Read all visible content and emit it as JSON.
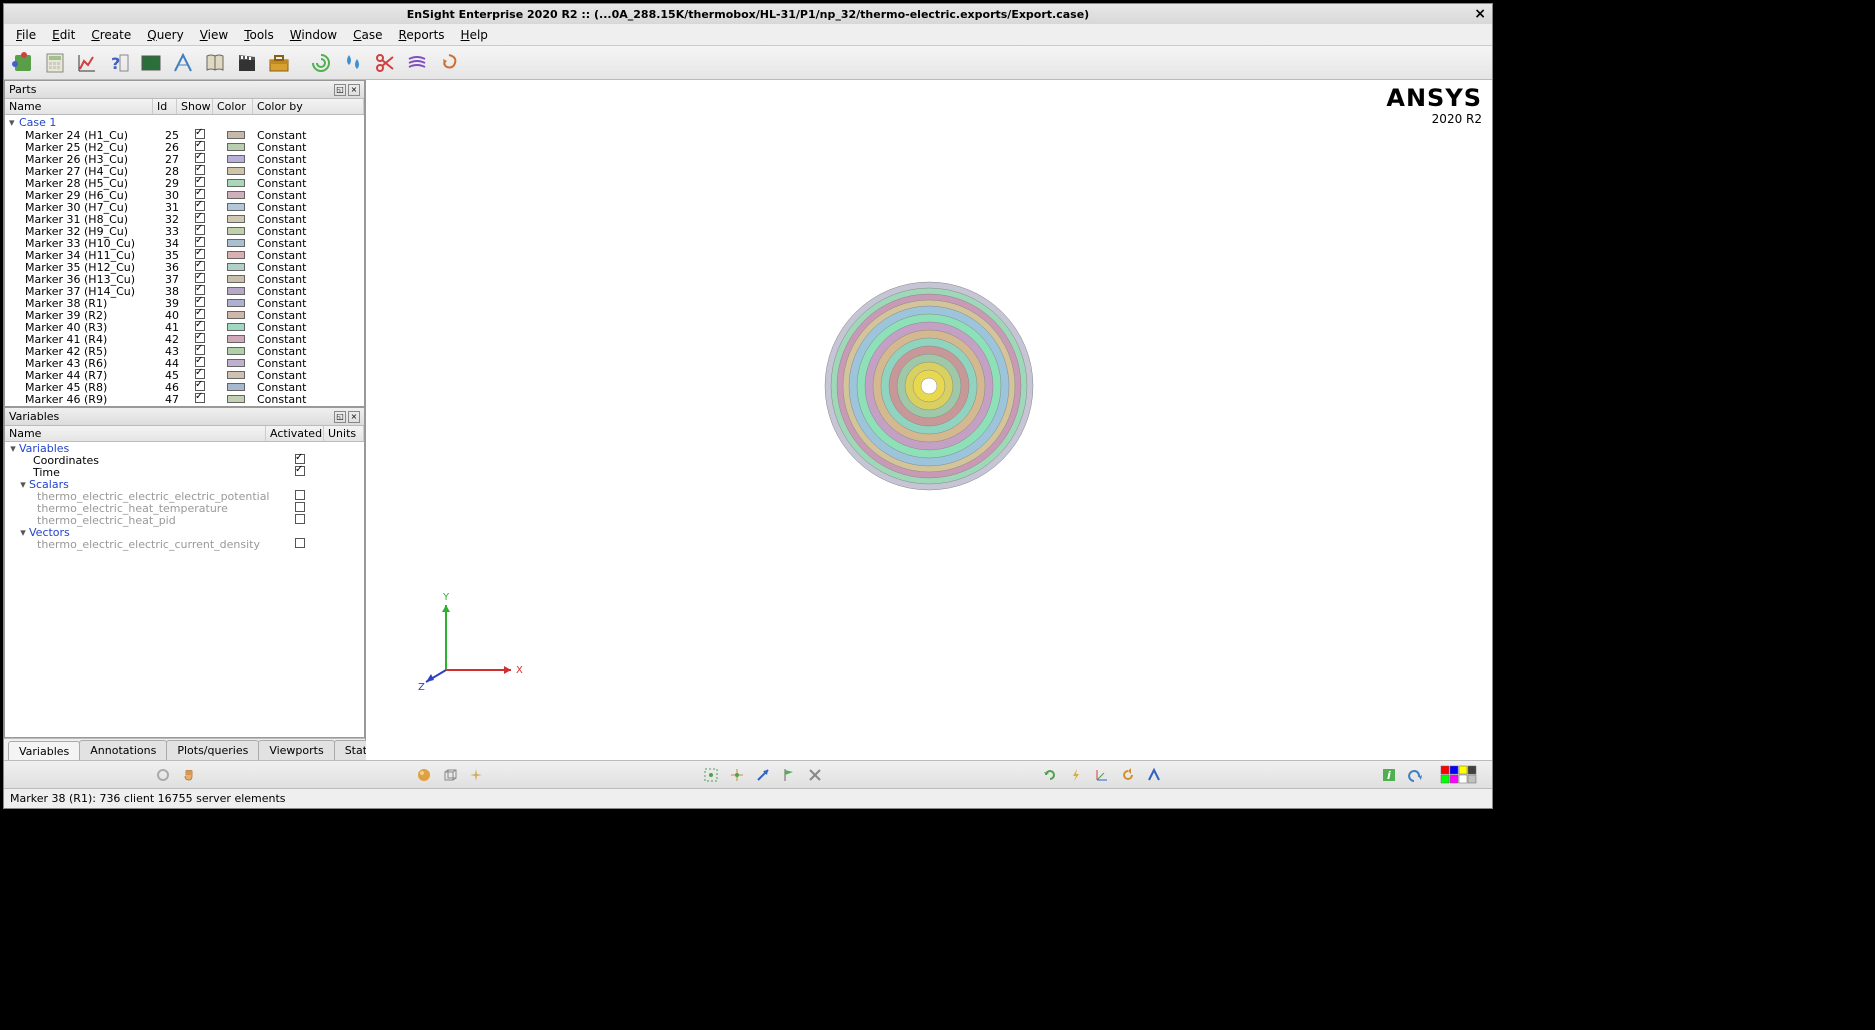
{
  "title": "EnSight Enterprise 2020 R2 :: (...0A_288.15K/thermobox/HL-31/P1/np_32/thermo-electric.exports/Export.case)",
  "menu": [
    "File",
    "Edit",
    "Create",
    "Query",
    "View",
    "Tools",
    "Window",
    "Case",
    "Reports",
    "Help"
  ],
  "brand": {
    "name": "ANSYS",
    "ver": "2020 R2"
  },
  "panels": {
    "parts": "Parts",
    "vars": "Variables"
  },
  "parts_cols": {
    "name": "Name",
    "id": "Id",
    "show": "Show",
    "color": "Color",
    "colorby": "Color by"
  },
  "vars_cols": {
    "name": "Name",
    "act": "Activated",
    "units": "Units"
  },
  "case_label": "Case 1",
  "parts": [
    {
      "name": "Marker 24 (H1_Cu)",
      "id": 25,
      "show": true,
      "color": "#c8b8a8",
      "colorby": "Constant"
    },
    {
      "name": "Marker 25 (H2_Cu)",
      "id": 26,
      "show": true,
      "color": "#b8d0b0",
      "colorby": "Constant"
    },
    {
      "name": "Marker 26 (H3_Cu)",
      "id": 27,
      "show": true,
      "color": "#b8b0d8",
      "colorby": "Constant"
    },
    {
      "name": "Marker 27 (H4_Cu)",
      "id": 28,
      "show": true,
      "color": "#d0c4a8",
      "colorby": "Constant"
    },
    {
      "name": "Marker 28 (H5_Cu)",
      "id": 29,
      "show": true,
      "color": "#a8d8b8",
      "colorby": "Constant"
    },
    {
      "name": "Marker 29 (H6_Cu)",
      "id": 30,
      "show": true,
      "color": "#d0b0b8",
      "colorby": "Constant"
    },
    {
      "name": "Marker 30 (H7_Cu)",
      "id": 31,
      "show": true,
      "color": "#b0c8d8",
      "colorby": "Constant"
    },
    {
      "name": "Marker 31 (H8_Cu)",
      "id": 32,
      "show": true,
      "color": "#d0c8b0",
      "colorby": "Constant"
    },
    {
      "name": "Marker 32 (H9_Cu)",
      "id": 33,
      "show": true,
      "color": "#c0d0a8",
      "colorby": "Constant"
    },
    {
      "name": "Marker 33 (H10_Cu)",
      "id": 34,
      "show": true,
      "color": "#a8c0d0",
      "colorby": "Constant"
    },
    {
      "name": "Marker 34 (H11_Cu)",
      "id": 35,
      "show": true,
      "color": "#d8b0b0",
      "colorby": "Constant"
    },
    {
      "name": "Marker 35 (H12_Cu)",
      "id": 36,
      "show": true,
      "color": "#b0d0c8",
      "colorby": "Constant"
    },
    {
      "name": "Marker 36 (H13_Cu)",
      "id": 37,
      "show": true,
      "color": "#c8c0a8",
      "colorby": "Constant"
    },
    {
      "name": "Marker 37 (H14_Cu)",
      "id": 38,
      "show": true,
      "color": "#b8a8c8",
      "colorby": "Constant"
    },
    {
      "name": "Marker 38 (R1)",
      "id": 39,
      "show": true,
      "color": "#b0b0d0",
      "colorby": "Constant"
    },
    {
      "name": "Marker 39 (R2)",
      "id": 40,
      "show": true,
      "color": "#d0b8a8",
      "colorby": "Constant"
    },
    {
      "name": "Marker 40 (R3)",
      "id": 41,
      "show": true,
      "color": "#a0d8c0",
      "colorby": "Constant"
    },
    {
      "name": "Marker 41 (R4)",
      "id": 42,
      "show": true,
      "color": "#d0a8b8",
      "colorby": "Constant"
    },
    {
      "name": "Marker 42 (R5)",
      "id": 43,
      "show": true,
      "color": "#b0d0a8",
      "colorby": "Constant"
    },
    {
      "name": "Marker 43 (R6)",
      "id": 44,
      "show": true,
      "color": "#c0b0d0",
      "colorby": "Constant"
    },
    {
      "name": "Marker 44 (R7)",
      "id": 45,
      "show": true,
      "color": "#d0c0b0",
      "colorby": "Constant"
    },
    {
      "name": "Marker 45 (R8)",
      "id": 46,
      "show": true,
      "color": "#a8b8d0",
      "colorby": "Constant"
    },
    {
      "name": "Marker 46 (R9)",
      "id": 47,
      "show": true,
      "color": "#c0d0b0",
      "colorby": "Constant"
    }
  ],
  "variables": {
    "root": "Variables",
    "leaves_a": [
      {
        "name": "Coordinates",
        "act": true
      },
      {
        "name": "Time",
        "act": true
      }
    ],
    "scalars": "Scalars",
    "scalars_items": [
      {
        "name": "thermo_electric_electric_electric_potential",
        "act": false
      },
      {
        "name": "thermo_electric_heat_temperature",
        "act": false
      },
      {
        "name": "thermo_electric_heat_pid",
        "act": false
      }
    ],
    "vectors": "Vectors",
    "vectors_items": [
      {
        "name": "thermo_electric_electric_current_density",
        "act": false
      }
    ]
  },
  "tabs": [
    "Variables",
    "Annotations",
    "Plots/queries",
    "Viewports",
    "States"
  ],
  "status": "Marker 38 (R1): 736 client 16755 server elements",
  "axes": {
    "x": "X",
    "y": "Y",
    "z": "Z"
  },
  "model_rings": [
    {
      "r": 104,
      "fill": "#c5c5d5"
    },
    {
      "r": 98,
      "fill": "#9fd8b8"
    },
    {
      "r": 92,
      "fill": "#c99ab5"
    },
    {
      "r": 86,
      "fill": "#d4c49a"
    },
    {
      "r": 80,
      "fill": "#9cc5dc"
    },
    {
      "r": 72,
      "fill": "#8de0b8"
    },
    {
      "r": 64,
      "fill": "#c5a0c5"
    },
    {
      "r": 56,
      "fill": "#d4b890"
    },
    {
      "r": 48,
      "fill": "#90d4c0"
    },
    {
      "r": 40,
      "fill": "#c89898"
    },
    {
      "r": 32,
      "fill": "#9ec8a8"
    },
    {
      "r": 24,
      "fill": "#d8d060"
    },
    {
      "r": 16,
      "fill": "#e8d850"
    },
    {
      "r": 8,
      "fill": "#ffffff"
    }
  ],
  "colorgrid": [
    "#ff0000",
    "#0000ff",
    "#ffff00",
    "#404040",
    "#00ff00",
    "#ff00ff",
    "#ffffff",
    "#c0c0c0"
  ]
}
